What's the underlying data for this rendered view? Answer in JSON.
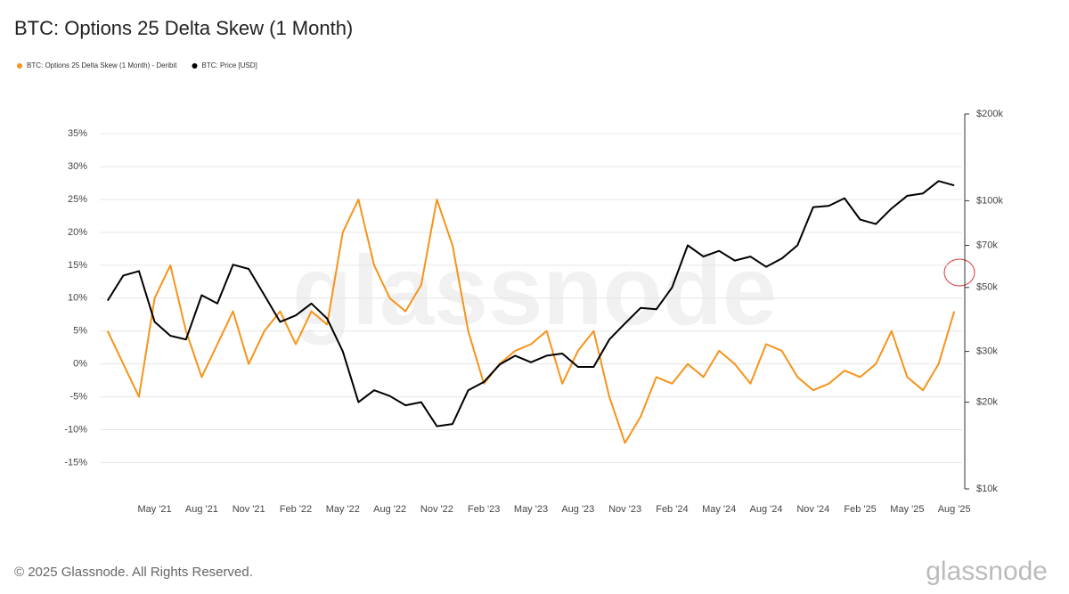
{
  "chart_data": {
    "type": "line",
    "title": "BTC: Options 25 Delta Skew (1 Month)",
    "footer": "© 2025 Glassnode. All Rights Reserved.",
    "watermark": "glassnode",
    "categories": [
      null,
      null,
      null,
      "May '21",
      null,
      null,
      "Aug '21",
      null,
      null,
      "Nov '21",
      null,
      null,
      "Feb '22",
      null,
      null,
      "May '22",
      null,
      null,
      "Aug '22",
      null,
      null,
      "Nov '22",
      null,
      null,
      "Feb '23",
      null,
      null,
      "May '23",
      null,
      null,
      "Aug '23",
      null,
      null,
      "Nov '23",
      null,
      null,
      "Feb '24",
      null,
      null,
      "May '24",
      null,
      null,
      "Aug '24",
      null,
      null,
      "Nov '24",
      null,
      null,
      "Feb '25",
      null,
      null,
      "May '25",
      null,
      null,
      "Aug '25"
    ],
    "series": [
      {
        "name": "BTC: Options 25 Delta Skew (1 Month) - Deribit",
        "color": "#f7931a",
        "axis": "y",
        "values": [
          5,
          0,
          -5,
          10,
          15,
          5,
          -2,
          3,
          8,
          0,
          5,
          8,
          3,
          8,
          6,
          20,
          25,
          15,
          10,
          8,
          12,
          25,
          18,
          5,
          -3,
          0,
          2,
          3,
          5,
          -3,
          2,
          5,
          -5,
          -12,
          -8,
          -2,
          -3,
          0,
          -2,
          2,
          0,
          -3,
          3,
          2,
          -2,
          -4,
          -3,
          -1,
          -2,
          0,
          5,
          -2,
          -4,
          0,
          8
        ]
      },
      {
        "name": "BTC: Price [USD]",
        "color": "#000000",
        "axis": "y2",
        "values": [
          45000,
          55000,
          57000,
          38000,
          34000,
          33000,
          47000,
          44000,
          60000,
          58000,
          47000,
          38000,
          40000,
          44000,
          39000,
          30000,
          20000,
          22000,
          21000,
          19500,
          20000,
          16500,
          16800,
          22000,
          23500,
          27000,
          29000,
          27500,
          29000,
          29500,
          26500,
          26500,
          33000,
          37500,
          42500,
          42000,
          50000,
          70000,
          64000,
          67000,
          62000,
          64000,
          59000,
          63000,
          70000,
          95000,
          96000,
          102000,
          86000,
          83000,
          94000,
          104000,
          106000,
          117000,
          113000
        ]
      }
    ],
    "ylim": [
      -19,
      38
    ],
    "yticks": [
      {
        "value": -15,
        "label": "-15%"
      },
      {
        "value": -10,
        "label": "-10%"
      },
      {
        "value": -5,
        "label": "-5%"
      },
      {
        "value": 0,
        "label": "0%"
      },
      {
        "value": 5,
        "label": "5%"
      },
      {
        "value": 10,
        "label": "10%"
      },
      {
        "value": 15,
        "label": "15%"
      },
      {
        "value": 20,
        "label": "20%"
      },
      {
        "value": 25,
        "label": "25%"
      },
      {
        "value": 30,
        "label": "30%"
      },
      {
        "value": 35,
        "label": "35%"
      }
    ],
    "y2lim": [
      10000,
      200000
    ],
    "y2log": true,
    "y2ticks": [
      {
        "value": 10000,
        "label": "$10k"
      },
      {
        "value": 20000,
        "label": "$20k"
      },
      {
        "value": 30000,
        "label": "$30k"
      },
      {
        "value": 50000,
        "label": "$50k"
      },
      {
        "value": 70000,
        "label": "$70k"
      },
      {
        "value": 100000,
        "label": "$100k"
      },
      {
        "value": 200000,
        "label": "$200k"
      }
    ],
    "grid": true,
    "legend": "top-left"
  }
}
